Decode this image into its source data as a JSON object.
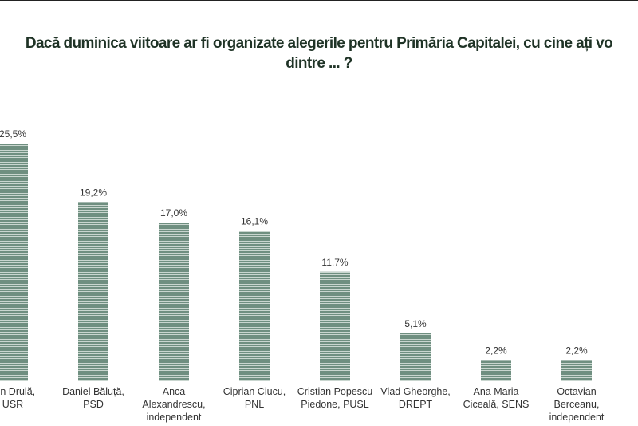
{
  "chart_data": {
    "type": "bar",
    "title": [
      "Dacă duminica viitoare ar fi organizate alegerile pentru Primăria Capitalei, cu cine ați vo",
      "dintre ... ?"
    ],
    "categories": [
      [
        "ălin Drulă,",
        "USR"
      ],
      [
        "Daniel Băluță,",
        "PSD"
      ],
      [
        "Anca",
        "Alexandrescu,",
        "independent"
      ],
      [
        "Ciprian Ciucu,",
        "PNL"
      ],
      [
        "Cristian Popescu",
        "Piedone, PUSL"
      ],
      [
        "Vlad Gheorghe,",
        "DREPT"
      ],
      [
        "Ana Maria",
        "Ciceală, SENS"
      ],
      [
        "Octavian",
        "Berceanu,",
        "independent"
      ]
    ],
    "values": [
      25.5,
      19.2,
      17.0,
      16.1,
      11.7,
      5.1,
      2.2,
      2.2
    ],
    "value_labels": [
      "25,5%",
      "19,2%",
      "17,0%",
      "16,1%",
      "11,7%",
      "5,1%",
      "2,2%",
      "2,2%"
    ],
    "color": "#6f8f80"
  }
}
